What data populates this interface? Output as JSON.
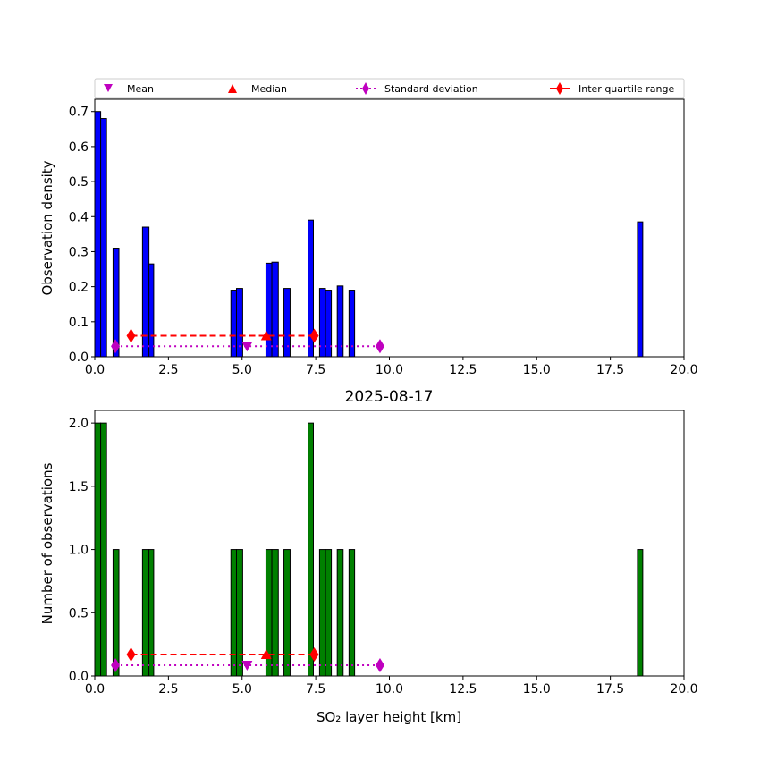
{
  "chart_data": [
    {
      "type": "bar",
      "title": "",
      "xlabel": "",
      "ylabel": "Observation density",
      "xlim": [
        0,
        20
      ],
      "ylim": [
        0,
        0.735
      ],
      "xticks": [
        "0.0",
        "2.5",
        "5.0",
        "7.5",
        "10.0",
        "12.5",
        "15.0",
        "17.5",
        "20.0"
      ],
      "yticks": [
        "0.0",
        "0.1",
        "0.2",
        "0.3",
        "0.4",
        "0.5",
        "0.6",
        "0.7"
      ],
      "bar_color": "#0000ff",
      "bins": [
        {
          "x0": 0.0,
          "x1": 0.2,
          "value": 0.7
        },
        {
          "x0": 0.2,
          "x1": 0.4,
          "value": 0.68
        },
        {
          "x0": 0.62,
          "x1": 0.82,
          "value": 0.31
        },
        {
          "x0": 1.62,
          "x1": 1.84,
          "value": 0.37
        },
        {
          "x0": 1.84,
          "x1": 2.0,
          "value": 0.265
        },
        {
          "x0": 4.62,
          "x1": 4.81,
          "value": 0.19
        },
        {
          "x0": 4.81,
          "x1": 5.02,
          "value": 0.195
        },
        {
          "x0": 5.81,
          "x1": 6.01,
          "value": 0.267
        },
        {
          "x0": 6.01,
          "x1": 6.23,
          "value": 0.27
        },
        {
          "x0": 6.42,
          "x1": 6.63,
          "value": 0.195
        },
        {
          "x0": 7.24,
          "x1": 7.42,
          "value": 0.39
        },
        {
          "x0": 7.63,
          "x1": 7.83,
          "value": 0.195
        },
        {
          "x0": 7.83,
          "x1": 8.03,
          "value": 0.19
        },
        {
          "x0": 8.23,
          "x1": 8.43,
          "value": 0.202
        },
        {
          "x0": 8.63,
          "x1": 8.82,
          "value": 0.19
        },
        {
          "x0": 18.42,
          "x1": 18.6,
          "value": 0.385
        }
      ],
      "stats": {
        "mean": 5.17,
        "median": 5.82,
        "std": [
          0.7,
          9.68
        ],
        "iqr": [
          1.23,
          7.45
        ],
        "stat_y": 0.03,
        "iqr_y": 0.06
      },
      "legend": {
        "placement": "top",
        "entries": [
          "Mean",
          "Median",
          "Standard deviation",
          "Inter quartile range"
        ]
      }
    },
    {
      "type": "bar",
      "title": "2025-08-17",
      "xlabel": "SO₂ layer height [km]",
      "ylabel": "Number of observations",
      "xlim": [
        0,
        20
      ],
      "ylim": [
        0,
        2.1
      ],
      "xticks": [
        "0.0",
        "2.5",
        "5.0",
        "7.5",
        "10.0",
        "12.5",
        "15.0",
        "17.5",
        "20.0"
      ],
      "yticks": [
        "0.0",
        "0.5",
        "1.0",
        "1.5",
        "2.0"
      ],
      "bar_color": "#008000",
      "bins": [
        {
          "x0": 0.0,
          "x1": 0.2,
          "value": 2
        },
        {
          "x0": 0.2,
          "x1": 0.4,
          "value": 2
        },
        {
          "x0": 0.62,
          "x1": 0.82,
          "value": 1
        },
        {
          "x0": 1.62,
          "x1": 1.84,
          "value": 1
        },
        {
          "x0": 1.84,
          "x1": 2.0,
          "value": 1
        },
        {
          "x0": 4.62,
          "x1": 4.81,
          "value": 1
        },
        {
          "x0": 4.81,
          "x1": 5.02,
          "value": 1
        },
        {
          "x0": 5.81,
          "x1": 6.01,
          "value": 1
        },
        {
          "x0": 6.01,
          "x1": 6.23,
          "value": 1
        },
        {
          "x0": 6.42,
          "x1": 6.63,
          "value": 1
        },
        {
          "x0": 7.24,
          "x1": 7.42,
          "value": 2
        },
        {
          "x0": 7.63,
          "x1": 7.83,
          "value": 1
        },
        {
          "x0": 7.83,
          "x1": 8.03,
          "value": 1
        },
        {
          "x0": 8.23,
          "x1": 8.43,
          "value": 1
        },
        {
          "x0": 8.63,
          "x1": 8.82,
          "value": 1
        },
        {
          "x0": 18.42,
          "x1": 18.6,
          "value": 1
        }
      ],
      "stats": {
        "mean": 5.17,
        "median": 5.82,
        "std": [
          0.7,
          9.68
        ],
        "iqr": [
          1.23,
          7.45
        ],
        "stat_y": 0.085,
        "iqr_y": 0.17
      }
    }
  ]
}
